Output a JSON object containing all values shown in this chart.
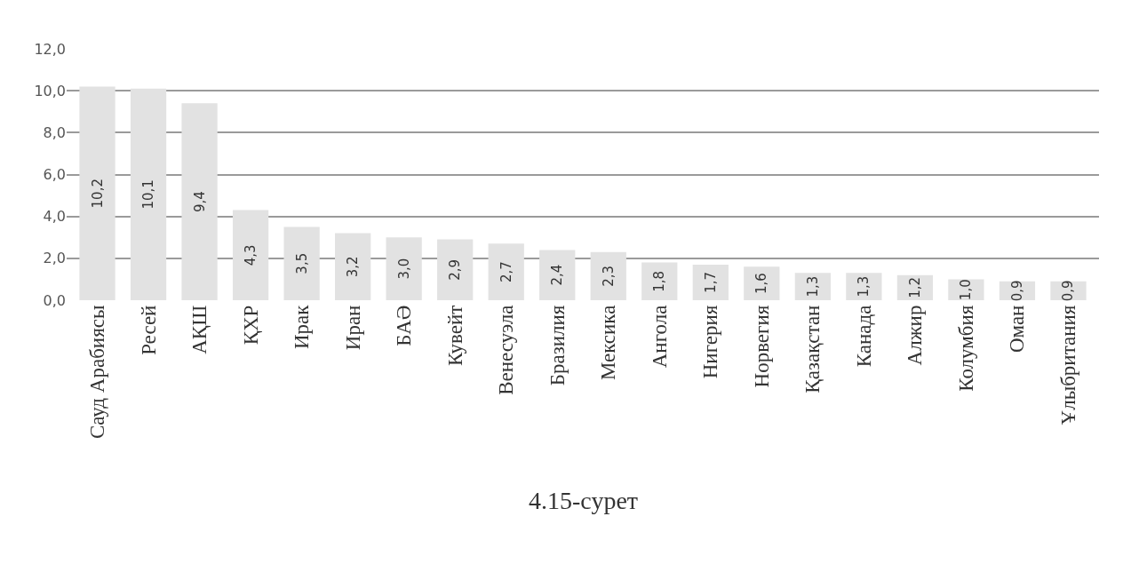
{
  "chart_data": {
    "type": "bar",
    "categories": [
      "Сауд Арабиясы",
      "Ресей",
      "АҚШ",
      "ҚХР",
      "Ирак",
      "Иран",
      "БАӘ",
      "Кувейт",
      "Венесуэла",
      "Бразилия",
      "Мексика",
      "Ангола",
      "Нигерия",
      "Норвегия",
      "Қазақстан",
      "Канада",
      "Алжир",
      "Колумбия",
      "Оман",
      "Ұлыбритания"
    ],
    "values": [
      10.2,
      10.1,
      9.4,
      4.3,
      3.5,
      3.2,
      3.0,
      2.9,
      2.7,
      2.4,
      2.3,
      1.8,
      1.7,
      1.6,
      1.3,
      1.3,
      1.2,
      1.0,
      0.9,
      0.9
    ],
    "value_labels": [
      "10,2",
      "10,1",
      "9,4",
      "4,3",
      "3,5",
      "3,2",
      "3,0",
      "2,9",
      "2,7",
      "2,4",
      "2,3",
      "1,8",
      "1,7",
      "1,6",
      "1,3",
      "1,3",
      "1,2",
      "1,0",
      "0,9",
      "0,9"
    ],
    "color": "#e2e2e2",
    "ylim": [
      0,
      12
    ],
    "yticks": [
      {
        "value": 0,
        "label": "0,0"
      },
      {
        "value": 2,
        "label": "2,0"
      },
      {
        "value": 4,
        "label": "4,0"
      },
      {
        "value": 6,
        "label": "6,0"
      },
      {
        "value": 8,
        "label": "8,0"
      },
      {
        "value": 10,
        "label": "10,0"
      },
      {
        "value": 12,
        "label": "12,0"
      }
    ],
    "grid": "y",
    "annotations": [
      "4.15-сурет"
    ]
  }
}
